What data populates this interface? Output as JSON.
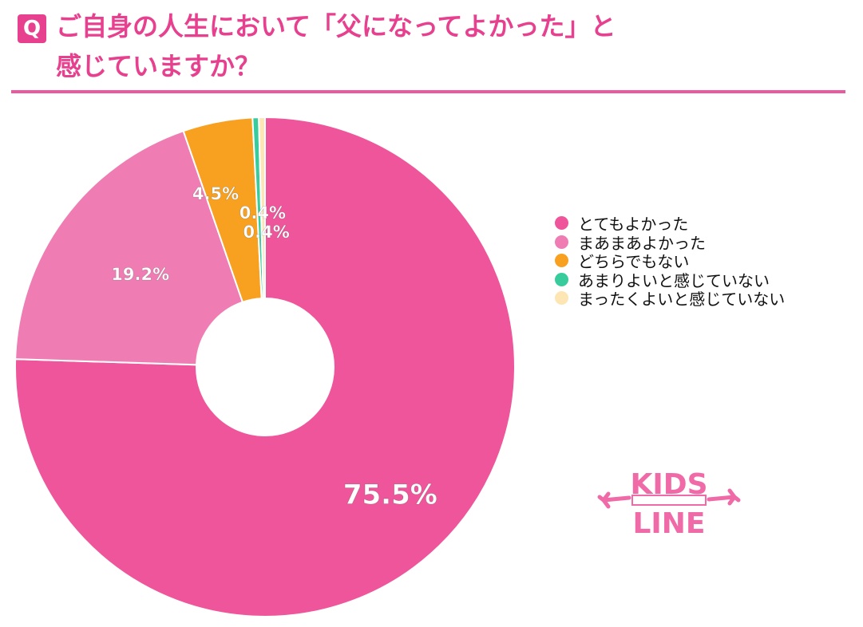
{
  "header": {
    "badge": "Q",
    "title": "ご自身の人生において「父になってよかった」と\n感じていますか？"
  },
  "colors": {
    "accent": "#e7408f",
    "rule": "#ea5aa0",
    "slice_border": "#ffffff"
  },
  "chart_data": {
    "type": "pie",
    "donut": true,
    "start_angle_deg": 0,
    "legend_position": "right",
    "categories": [
      "とてもよかった",
      "まあまあよかった",
      "どちらでもない",
      "あまりよいと感じていない",
      "まったくよいと感じていない"
    ],
    "values": [
      75.5,
      19.2,
      4.5,
      0.4,
      0.4
    ],
    "data_labels": [
      "75.5%",
      "19.2%",
      "4.5%",
      "0.4%",
      "0.4%"
    ],
    "colors": [
      "#ef559a",
      "#ef7db3",
      "#f8a020",
      "#38cc9c",
      "#fde6b4"
    ]
  },
  "logo": {
    "text_top": "KIDS",
    "text_bottom": "LINE",
    "color": "#f06aa8"
  }
}
